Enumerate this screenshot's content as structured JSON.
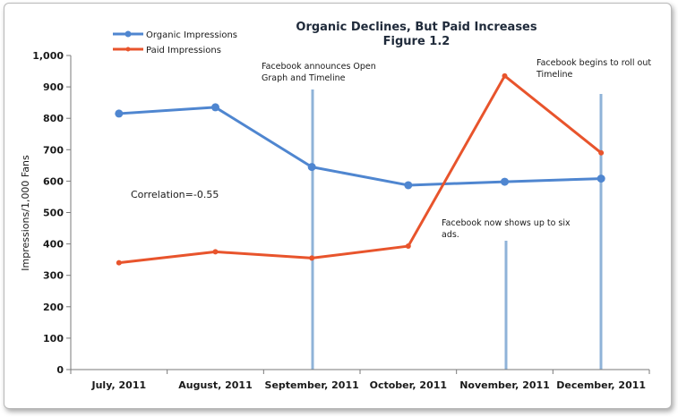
{
  "chart_data": {
    "type": "line",
    "title": "Organic Declines, But Paid Increases",
    "subtitle": "Figure 1.2",
    "xlabel": "",
    "ylabel": "Impressions/1,000 Fans",
    "ylim": [
      0,
      1000
    ],
    "yticks": [
      "0",
      "100",
      "200",
      "300",
      "400",
      "500",
      "600",
      "700",
      "800",
      "900",
      "1,000"
    ],
    "categories": [
      "July, 2011",
      "August, 2011",
      "September, 2011",
      "October, 2011",
      "November, 2011",
      "December, 2011"
    ],
    "series": [
      {
        "name": "Organic Impressions",
        "color": "#4f86d0",
        "values": [
          815,
          835,
          645,
          587,
          598,
          608
        ]
      },
      {
        "name": "Paid Impressions",
        "color": "#e8542c",
        "values": [
          340,
          375,
          355,
          393,
          935,
          690
        ]
      }
    ],
    "legend_position": "top-left",
    "grid": false,
    "annotations": [
      {
        "lines": [
          "Facebook announces Open",
          "Graph and Timeline"
        ],
        "at_category": "September, 2011"
      },
      {
        "lines": [
          "Facebook now shows up to six",
          "ads."
        ],
        "at_category": "November, 2011"
      },
      {
        "lines": [
          "Facebook begins to roll out",
          "Timeline"
        ],
        "at_category": "December, 2011"
      }
    ],
    "correlation_text": "Correlation=-0.55",
    "vertical_marker_color": "#8fb3d8"
  }
}
